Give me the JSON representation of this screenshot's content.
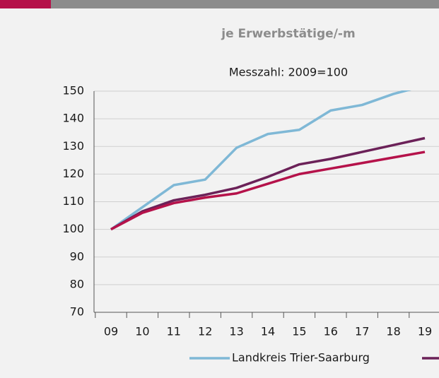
{
  "chart_data": {
    "type": "line",
    "title": "je Erwerbstätige/-m",
    "subtitle": "Messzahl: 2009=100",
    "categories": [
      "09",
      "10",
      "11",
      "12",
      "13",
      "14",
      "15",
      "16",
      "17",
      "18",
      "19"
    ],
    "series": [
      {
        "name": "Landkreis Trier-Saarburg",
        "color": "#7fb8d6",
        "values": [
          100,
          108,
          116,
          118,
          129.5,
          134.5,
          136,
          143,
          145,
          149,
          152
        ]
      },
      {
        "color": "#6b2158",
        "values": [
          100,
          106.5,
          110.5,
          112.5,
          115,
          119,
          123.5,
          125.5,
          128,
          130.5,
          133
        ]
      },
      {
        "color": "#b5124a",
        "values": [
          100,
          106,
          109.5,
          111.5,
          113,
          116.5,
          120,
          122,
          124,
          126,
          128
        ]
      }
    ],
    "ylim": [
      70,
      150
    ],
    "yticks": [
      70,
      80,
      90,
      100,
      110,
      120,
      130,
      140,
      150
    ],
    "grid": true
  }
}
